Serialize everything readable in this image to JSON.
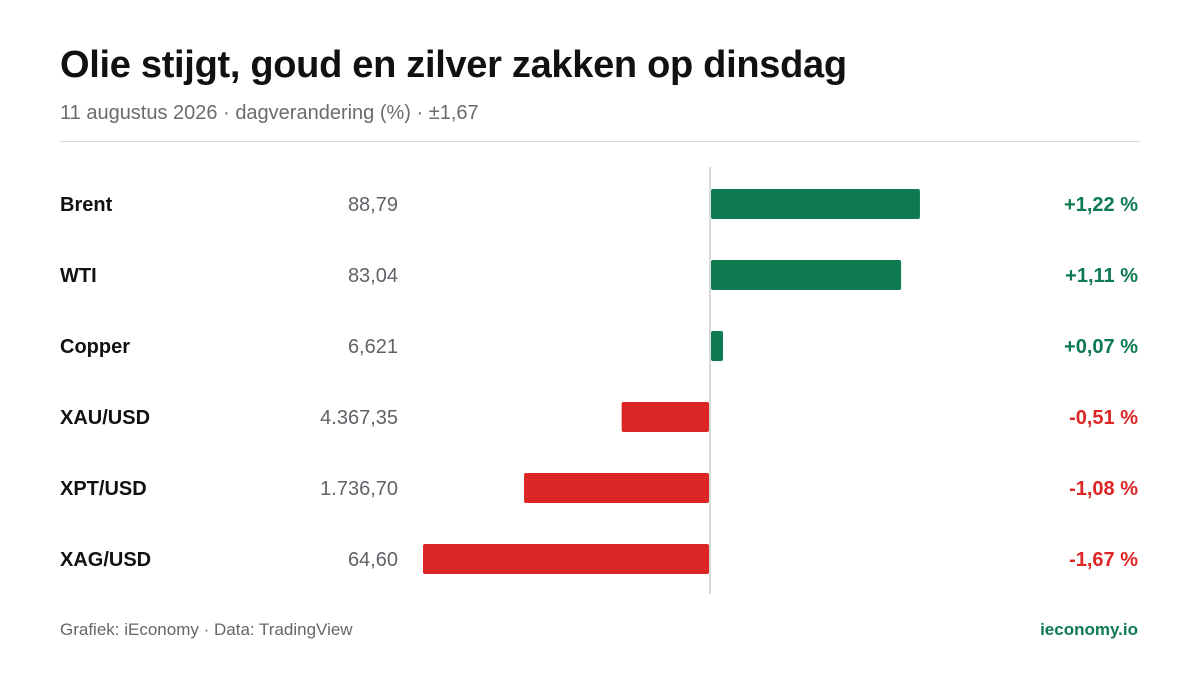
{
  "header": {
    "title": "Olie stijgt, goud en zilver zakken op dinsdag",
    "subtitle": "11 augustus 2026 · dagverandering (%) · ±1,67"
  },
  "colors": {
    "positive": "#0d7a50",
    "negative": "#dc2626",
    "axis": "#cccccc",
    "label": "#111111",
    "price": "#5f6368"
  },
  "chart_data": {
    "type": "bar",
    "orientation": "horizontal",
    "title": "Olie stijgt, goud en zilver zakken op dinsdag",
    "xlim": [
      -1.67,
      1.67
    ],
    "rows": [
      {
        "name": "Brent",
        "price": "88,79",
        "change": 1.22,
        "change_label": "+1,22 %"
      },
      {
        "name": "WTI",
        "price": "83,04",
        "change": 1.11,
        "change_label": "+1,11 %"
      },
      {
        "name": "Copper",
        "price": "6,621",
        "change": 0.07,
        "change_label": "+0,07 %"
      },
      {
        "name": "XAU/USD",
        "price": "4.367,35",
        "change": -0.51,
        "change_label": "-0,51 %"
      },
      {
        "name": "XPT/USD",
        "price": "1.736,70",
        "change": -1.08,
        "change_label": "-1,08 %"
      },
      {
        "name": "XAG/USD",
        "price": "64,60",
        "change": -1.67,
        "change_label": "-1,67 %"
      }
    ]
  },
  "footer": {
    "credit": "Grafiek: iEconomy · Data: TradingView",
    "brand": "ieconomy.io"
  }
}
